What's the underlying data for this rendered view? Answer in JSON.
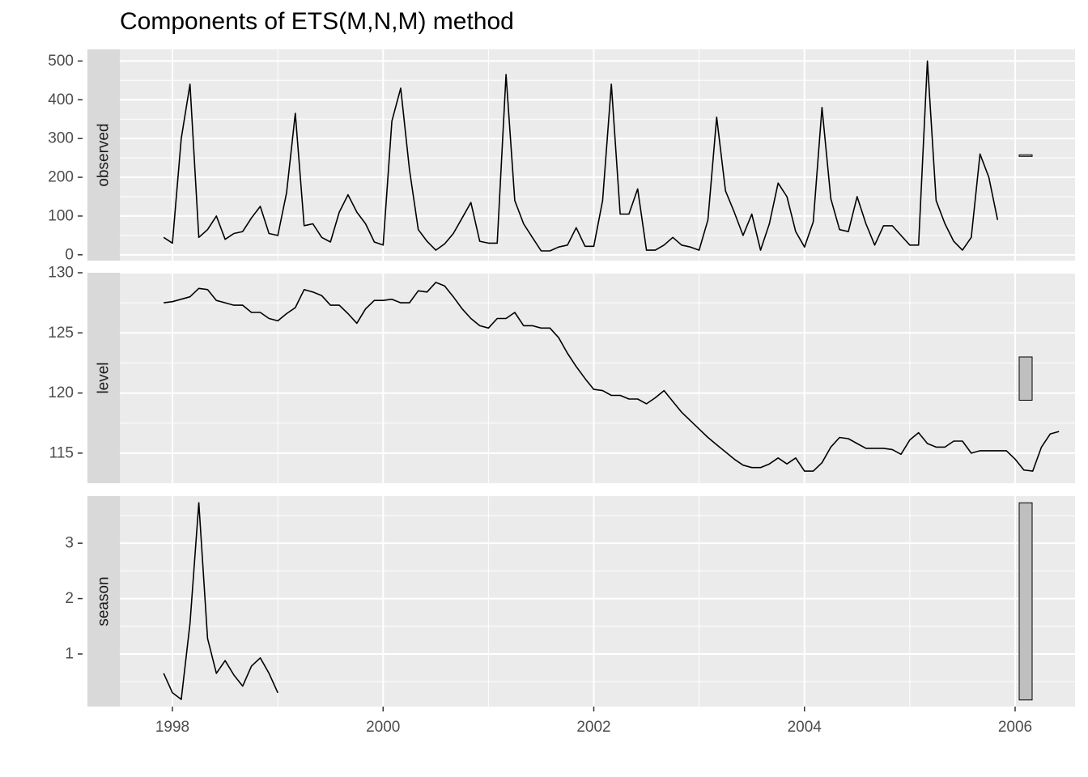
{
  "chart_data": {
    "type": "line",
    "title": "Components of ETS(M,N,M) method",
    "xlabel": "",
    "ylabel": "",
    "grid": true,
    "x_start": 1997.917,
    "x_step": 0.08333,
    "x_ticks": [
      1998,
      2000,
      2002,
      2004,
      2006
    ],
    "x_tick_labels": [
      "1998",
      "2000",
      "2002",
      "2004",
      "2006"
    ],
    "xlim": [
      1997.5,
      2006.5
    ],
    "panels": [
      {
        "strip": "observed",
        "ylim": [
          -15,
          530
        ],
        "y_ticks": [
          0,
          100,
          200,
          300,
          400,
          500
        ],
        "y_tick_labels": [
          "0",
          "100",
          "200",
          "300",
          "400",
          "500"
        ],
        "range_bar": [
          254,
          258
        ],
        "values": [
          45,
          30,
          300,
          440,
          45,
          65,
          100,
          40,
          55,
          60,
          95,
          125,
          55,
          50,
          160,
          365,
          75,
          80,
          45,
          33,
          110,
          155,
          110,
          80,
          33,
          25,
          345,
          430,
          220,
          65,
          35,
          12,
          28,
          55,
          95,
          135,
          35,
          30,
          30,
          465,
          140,
          80,
          45,
          10,
          10,
          20,
          25,
          70,
          22,
          22,
          140,
          440,
          105,
          105,
          170,
          12,
          12,
          25,
          45,
          25,
          20,
          12,
          90,
          355,
          165,
          110,
          50,
          105,
          12,
          80,
          185,
          150,
          60,
          20,
          85,
          380,
          145,
          65,
          60,
          150,
          80,
          25,
          75,
          75,
          50,
          25,
          25,
          500,
          140,
          80,
          35,
          12,
          45,
          260,
          200,
          90
        ]
      },
      {
        "strip": "level",
        "ylim": [
          112.5,
          130
        ],
        "y_ticks": [
          115,
          120,
          125,
          130
        ],
        "y_tick_labels": [
          "115",
          "120",
          "125",
          "130"
        ],
        "range_bar": [
          119.4,
          123
        ],
        "values": [
          127.5,
          127.6,
          127.8,
          128.0,
          128.7,
          128.6,
          127.7,
          127.5,
          127.3,
          127.3,
          126.7,
          126.7,
          126.2,
          126.0,
          126.6,
          127.1,
          128.6,
          128.4,
          128.1,
          127.3,
          127.3,
          126.6,
          125.8,
          127.0,
          127.7,
          127.7,
          127.8,
          127.5,
          127.5,
          128.5,
          128.4,
          129.2,
          128.9,
          128.0,
          127.0,
          126.2,
          125.6,
          125.4,
          126.2,
          126.2,
          126.7,
          125.6,
          125.6,
          125.4,
          125.4,
          124.6,
          123.3,
          122.2,
          121.2,
          120.3,
          120.2,
          119.8,
          119.8,
          119.5,
          119.5,
          119.1,
          119.6,
          120.2,
          119.3,
          118.4,
          117.7,
          117.0,
          116.3,
          115.7,
          115.1,
          114.5,
          114.0,
          113.8,
          113.8,
          114.1,
          114.6,
          114.1,
          114.6,
          113.5,
          113.5,
          114.2,
          115.5,
          116.3,
          116.2,
          115.8,
          115.4,
          115.4,
          115.4,
          115.3,
          114.9,
          116.1,
          116.7,
          115.8,
          115.5,
          115.5,
          116.0,
          116.0,
          115.0,
          115.2,
          115.2,
          115.2,
          115.2,
          114.5,
          113.6,
          113.5,
          115.5,
          116.6,
          116.8
        ]
      },
      {
        "strip": "season",
        "ylim": [
          0.05,
          3.85
        ],
        "y_ticks": [
          1,
          2,
          3
        ],
        "y_tick_labels": [
          "1",
          "2",
          "3"
        ],
        "range_bar": [
          0.17,
          3.73
        ],
        "values": [
          0.65,
          0.3,
          0.18,
          1.55,
          3.73,
          1.28,
          0.65,
          0.88,
          0.62,
          0.42,
          0.78,
          0.93,
          0.65,
          0.3
        ]
      }
    ]
  }
}
